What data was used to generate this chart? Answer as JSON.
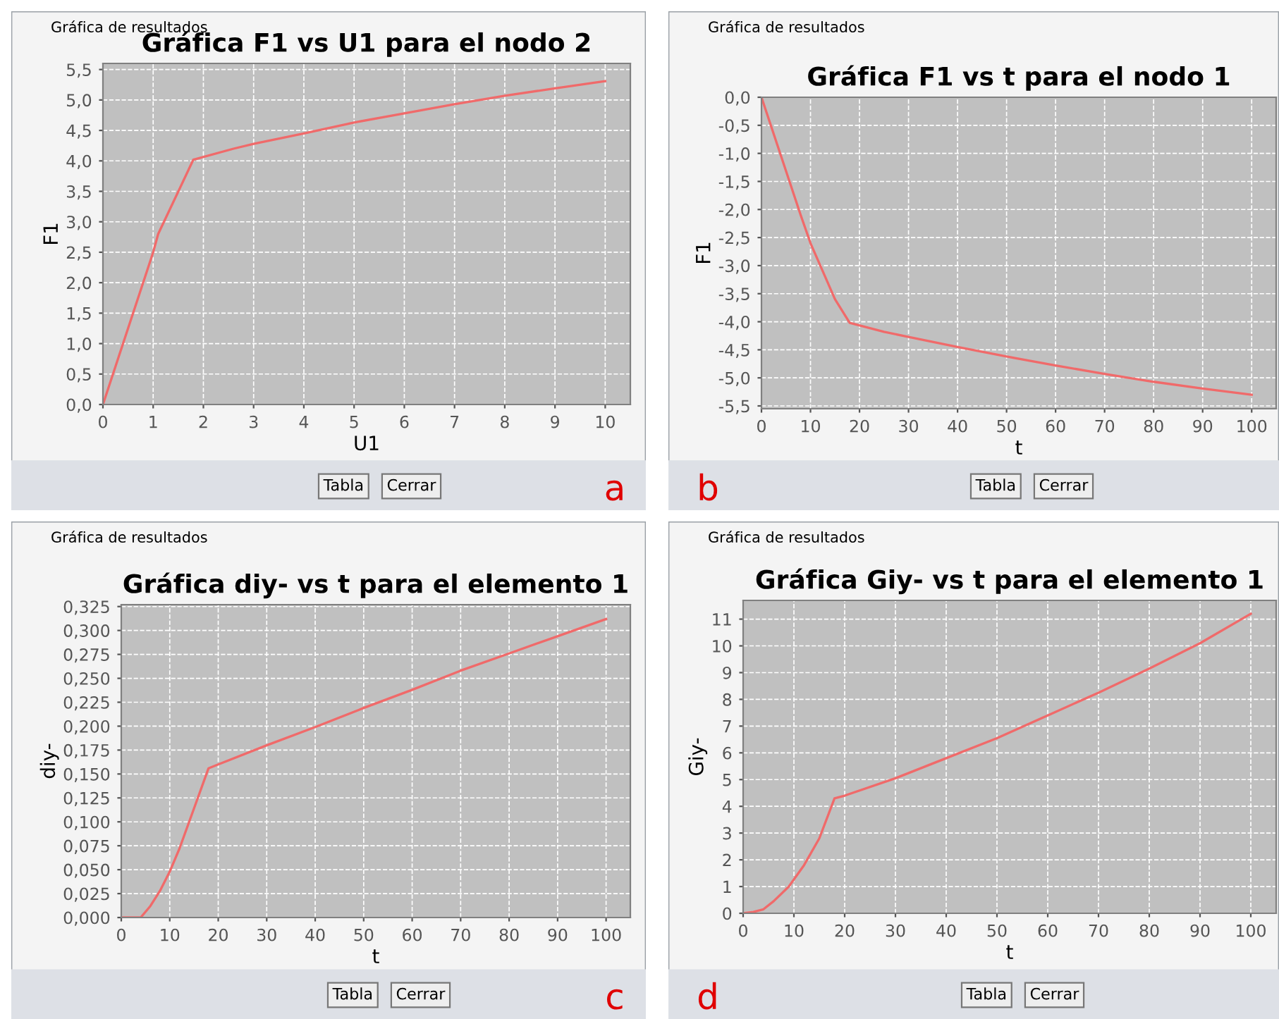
{
  "chart_data": [
    {
      "type": "line",
      "title": "Gráfica F1 vs U1 para el nodo 2",
      "xlabel": "U1",
      "ylabel": "F1",
      "grid": true,
      "xlim": [
        0,
        10.5
      ],
      "ylim": [
        0,
        5.6
      ],
      "xticks": [
        0,
        1,
        2,
        3,
        4,
        5,
        6,
        7,
        8,
        9,
        10
      ],
      "yticks": [
        {
          "value": 0,
          "label": "0,0"
        },
        {
          "value": 0.5,
          "label": "0,5"
        },
        {
          "value": 1,
          "label": "1,0"
        },
        {
          "value": 1.5,
          "label": "1,5"
        },
        {
          "value": 2,
          "label": "2,0"
        },
        {
          "value": 2.5,
          "label": "2,5"
        },
        {
          "value": 3,
          "label": "3,0"
        },
        {
          "value": 3.5,
          "label": "3,5"
        },
        {
          "value": 4,
          "label": "4,0"
        },
        {
          "value": 4.5,
          "label": "4,5"
        },
        {
          "value": 5,
          "label": "5,0"
        },
        {
          "value": 5.5,
          "label": "5,5"
        }
      ],
      "series": [
        {
          "color": "#f06a6a",
          "x": [
            0,
            1,
            1.1,
            1.8,
            2.6,
            3,
            4,
            5,
            6,
            7,
            8,
            9,
            10
          ],
          "values": [
            0,
            2.5,
            2.8,
            4.02,
            4.2,
            4.28,
            4.45,
            4.63,
            4.78,
            4.93,
            5.07,
            5.19,
            5.31
          ]
        }
      ],
      "annotations": [
        "Gráfica de resultados",
        "Tabla",
        "Cerrar",
        "a"
      ]
    },
    {
      "type": "line",
      "title": "Gráfica F1 vs t para el nodo 1",
      "xlabel": "t",
      "ylabel": "F1",
      "grid": true,
      "xlim": [
        0,
        105
      ],
      "ylim": [
        -5.55,
        0
      ],
      "xticks": [
        0,
        10,
        20,
        30,
        40,
        50,
        60,
        70,
        80,
        90,
        100
      ],
      "yticks": [
        {
          "value": 0,
          "label": "0,0"
        },
        {
          "value": -0.5,
          "label": "-0,5"
        },
        {
          "value": -1,
          "label": "-1,0"
        },
        {
          "value": -1.5,
          "label": "-1,5"
        },
        {
          "value": -2,
          "label": "-2,0"
        },
        {
          "value": -2.5,
          "label": "-2,5"
        },
        {
          "value": -3,
          "label": "-3,0"
        },
        {
          "value": -3.5,
          "label": "-3,5"
        },
        {
          "value": -4,
          "label": "-4,0"
        },
        {
          "value": -4.5,
          "label": "-4,5"
        },
        {
          "value": -5,
          "label": "-5,0"
        },
        {
          "value": -5.5,
          "label": "-5,5"
        }
      ],
      "series": [
        {
          "color": "#f06a6a",
          "x": [
            0,
            8,
            10,
            15,
            18,
            25,
            30,
            40,
            50,
            60,
            70,
            80,
            90,
            100
          ],
          "values": [
            0,
            -2.1,
            -2.6,
            -3.6,
            -4.02,
            -4.18,
            -4.27,
            -4.45,
            -4.62,
            -4.78,
            -4.93,
            -5.07,
            -5.19,
            -5.3
          ]
        }
      ],
      "annotations": [
        "Gráfica de resultados",
        "Tabla",
        "Cerrar",
        "b"
      ]
    },
    {
      "type": "line",
      "title": "Gráfica diy- vs t para el elemento 1",
      "xlabel": "t",
      "ylabel": "diy-",
      "grid": true,
      "xlim": [
        0,
        105
      ],
      "ylim": [
        0,
        0.327
      ],
      "xticks": [
        0,
        10,
        20,
        30,
        40,
        50,
        60,
        70,
        80,
        90,
        100
      ],
      "yticks": [
        {
          "value": 0,
          "label": "0,000"
        },
        {
          "value": 0.025,
          "label": "0,025"
        },
        {
          "value": 0.05,
          "label": "0,050"
        },
        {
          "value": 0.075,
          "label": "0,075"
        },
        {
          "value": 0.1,
          "label": "0,100"
        },
        {
          "value": 0.125,
          "label": "0,125"
        },
        {
          "value": 0.15,
          "label": "0,150"
        },
        {
          "value": 0.175,
          "label": "0,175"
        },
        {
          "value": 0.2,
          "label": "0,200"
        },
        {
          "value": 0.225,
          "label": "0,225"
        },
        {
          "value": 0.25,
          "label": "0,250"
        },
        {
          "value": 0.275,
          "label": "0,275"
        },
        {
          "value": 0.3,
          "label": "0,300"
        },
        {
          "value": 0.325,
          "label": "0,325"
        }
      ],
      "series": [
        {
          "color": "#f06a6a",
          "x": [
            0,
            4,
            6,
            8,
            10,
            12,
            14,
            16,
            18,
            20,
            30,
            40,
            50,
            60,
            70,
            80,
            90,
            100
          ],
          "values": [
            0,
            0,
            0.012,
            0.028,
            0.048,
            0.072,
            0.1,
            0.128,
            0.156,
            0.16,
            0.18,
            0.199,
            0.219,
            0.238,
            0.258,
            0.276,
            0.294,
            0.312
          ]
        }
      ],
      "annotations": [
        "Gráfica de resultados",
        "Tabla",
        "Cerrar",
        "c"
      ]
    },
    {
      "type": "line",
      "title": "Gráfica Giy- vs t para el elemento 1",
      "xlabel": "t",
      "ylabel": "Giy-",
      "grid": true,
      "xlim": [
        0,
        105
      ],
      "ylim": [
        0,
        11.7
      ],
      "xticks": [
        0,
        10,
        20,
        30,
        40,
        50,
        60,
        70,
        80,
        90,
        100
      ],
      "yticks": [
        0,
        1,
        2,
        3,
        4,
        5,
        6,
        7,
        8,
        9,
        10,
        11
      ],
      "series": [
        {
          "color": "#f06a6a",
          "x": [
            0,
            2,
            4,
            6,
            9,
            12,
            15,
            18,
            20,
            30,
            40,
            50,
            60,
            70,
            80,
            90,
            100
          ],
          "values": [
            0,
            0.05,
            0.15,
            0.45,
            1.0,
            1.8,
            2.8,
            4.3,
            4.4,
            5.05,
            5.8,
            6.55,
            7.4,
            8.25,
            9.15,
            10.1,
            11.2
          ]
        }
      ],
      "annotations": [
        "Gráfica de resultados",
        "Tabla",
        "Cerrar",
        "d"
      ]
    }
  ]
}
